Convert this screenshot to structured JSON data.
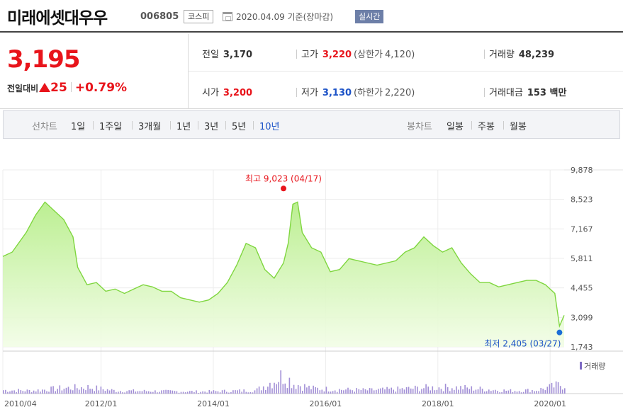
{
  "header": {
    "stock_name": "미래에셋대우우",
    "stock_code": "006805",
    "market": "코스피",
    "base_date": "2020.04.09 기준(장마감)",
    "realtime": "실시간",
    "calendar_icon": "calendar-icon"
  },
  "quote": {
    "price": "3,195",
    "change_label": "전일대비",
    "change_direction_icon": "up-triangle-icon",
    "change": "25",
    "change_pct": "+0.79%",
    "stats": {
      "prev_close_label": "전일",
      "prev_close": "3,170",
      "high_label": "고가",
      "high": "3,220",
      "upper_limit_label": "(상한가",
      "upper_limit": "4,120)",
      "volume_label": "거래량",
      "volume": "48,239",
      "open_label": "시가",
      "open": "3,200",
      "low_label": "저가",
      "low": "3,130",
      "lower_limit_label": "(하한가",
      "lower_limit": "2,220)",
      "trade_value_label": "거래대금",
      "trade_value": "153 백만"
    },
    "colors": {
      "up": "#e8141b",
      "down": "#1b52c7"
    }
  },
  "tabs": {
    "line_label": "선차트",
    "line_periods": [
      "1일",
      "1주일",
      "3개월",
      "1년",
      "3년",
      "5년",
      "10년"
    ],
    "line_active": "10년",
    "candle_label": "봉차트",
    "candle_periods": [
      "일봉",
      "주봉",
      "월봉"
    ]
  },
  "chart_data": {
    "type": "area",
    "title": "",
    "x_tick_labels": [
      "2010/04",
      "2012/01",
      "2014/01",
      "2016/01",
      "2018/01",
      "2020/01"
    ],
    "y_tick_labels": [
      "9,878",
      "8,523",
      "7,167",
      "5,811",
      "4,455",
      "3,099",
      "1,743"
    ],
    "ylim": [
      1743,
      9878
    ],
    "x_range": [
      "2010/04",
      "2020/04"
    ],
    "grid": true,
    "series": [
      {
        "x": [
          "2010/04",
          "2010/06",
          "2010/09",
          "2010/11",
          "2011/01",
          "2011/03",
          "2011/05",
          "2011/07",
          "2011/08",
          "2011/10",
          "2011/12",
          "2012/02",
          "2012/04",
          "2012/06",
          "2012/08",
          "2012/10",
          "2012/12",
          "2013/02",
          "2013/04",
          "2013/06",
          "2013/08",
          "2013/10",
          "2013/12",
          "2014/02",
          "2014/04",
          "2014/06",
          "2014/08",
          "2014/10",
          "2014/12",
          "2015/02",
          "2015/04",
          "2015/05",
          "2015/06",
          "2015/07",
          "2015/08",
          "2015/10",
          "2015/12",
          "2016/02",
          "2016/04",
          "2016/06",
          "2016/08",
          "2016/10",
          "2016/12",
          "2017/02",
          "2017/04",
          "2017/06",
          "2017/08",
          "2017/10",
          "2017/12",
          "2018/02",
          "2018/04",
          "2018/06",
          "2018/08",
          "2018/10",
          "2018/12",
          "2019/02",
          "2019/04",
          "2019/06",
          "2019/08",
          "2019/10",
          "2019/12",
          "2020/02",
          "2020/03",
          "2020/04"
        ],
        "values": [
          5900,
          6100,
          7000,
          7800,
          8400,
          8000,
          7600,
          6800,
          5400,
          4600,
          4700,
          4300,
          4400,
          4200,
          4400,
          4600,
          4500,
          4300,
          4300,
          4000,
          3900,
          3800,
          3900,
          4200,
          4700,
          5500,
          6500,
          6300,
          5300,
          4900,
          5600,
          6500,
          8300,
          8400,
          7000,
          6300,
          6100,
          5200,
          5300,
          5800,
          5700,
          5600,
          5500,
          5600,
          5700,
          6100,
          6300,
          6800,
          6400,
          6100,
          6300,
          5600,
          5100,
          4700,
          4700,
          4500,
          4600,
          4700,
          4800,
          4800,
          4600,
          4200,
          2700,
          3195
        ]
      }
    ],
    "annotations": {
      "high_label": "최고 9,023 (04/17)",
      "high": {
        "x": "2015/04",
        "value": 9023
      },
      "low_label": "최저 2,405 (03/27)",
      "low": {
        "x": "2020/03",
        "value": 2405
      }
    },
    "volume": {
      "legend": "거래량",
      "x": [
        "2010/04",
        "2010/10",
        "2011/04",
        "2011/10",
        "2012/04",
        "2012/10",
        "2013/04",
        "2013/10",
        "2014/04",
        "2014/10",
        "2015/04",
        "2015/06",
        "2015/10",
        "2016/04",
        "2016/10",
        "2017/04",
        "2017/10",
        "2018/04",
        "2018/10",
        "2019/04",
        "2019/10",
        "2020/03"
      ],
      "values": [
        0.12,
        0.1,
        0.18,
        0.22,
        0.1,
        0.09,
        0.08,
        0.07,
        0.09,
        0.11,
        0.65,
        0.35,
        0.18,
        0.14,
        0.12,
        0.15,
        0.2,
        0.22,
        0.16,
        0.1,
        0.12,
        0.3
      ]
    }
  }
}
